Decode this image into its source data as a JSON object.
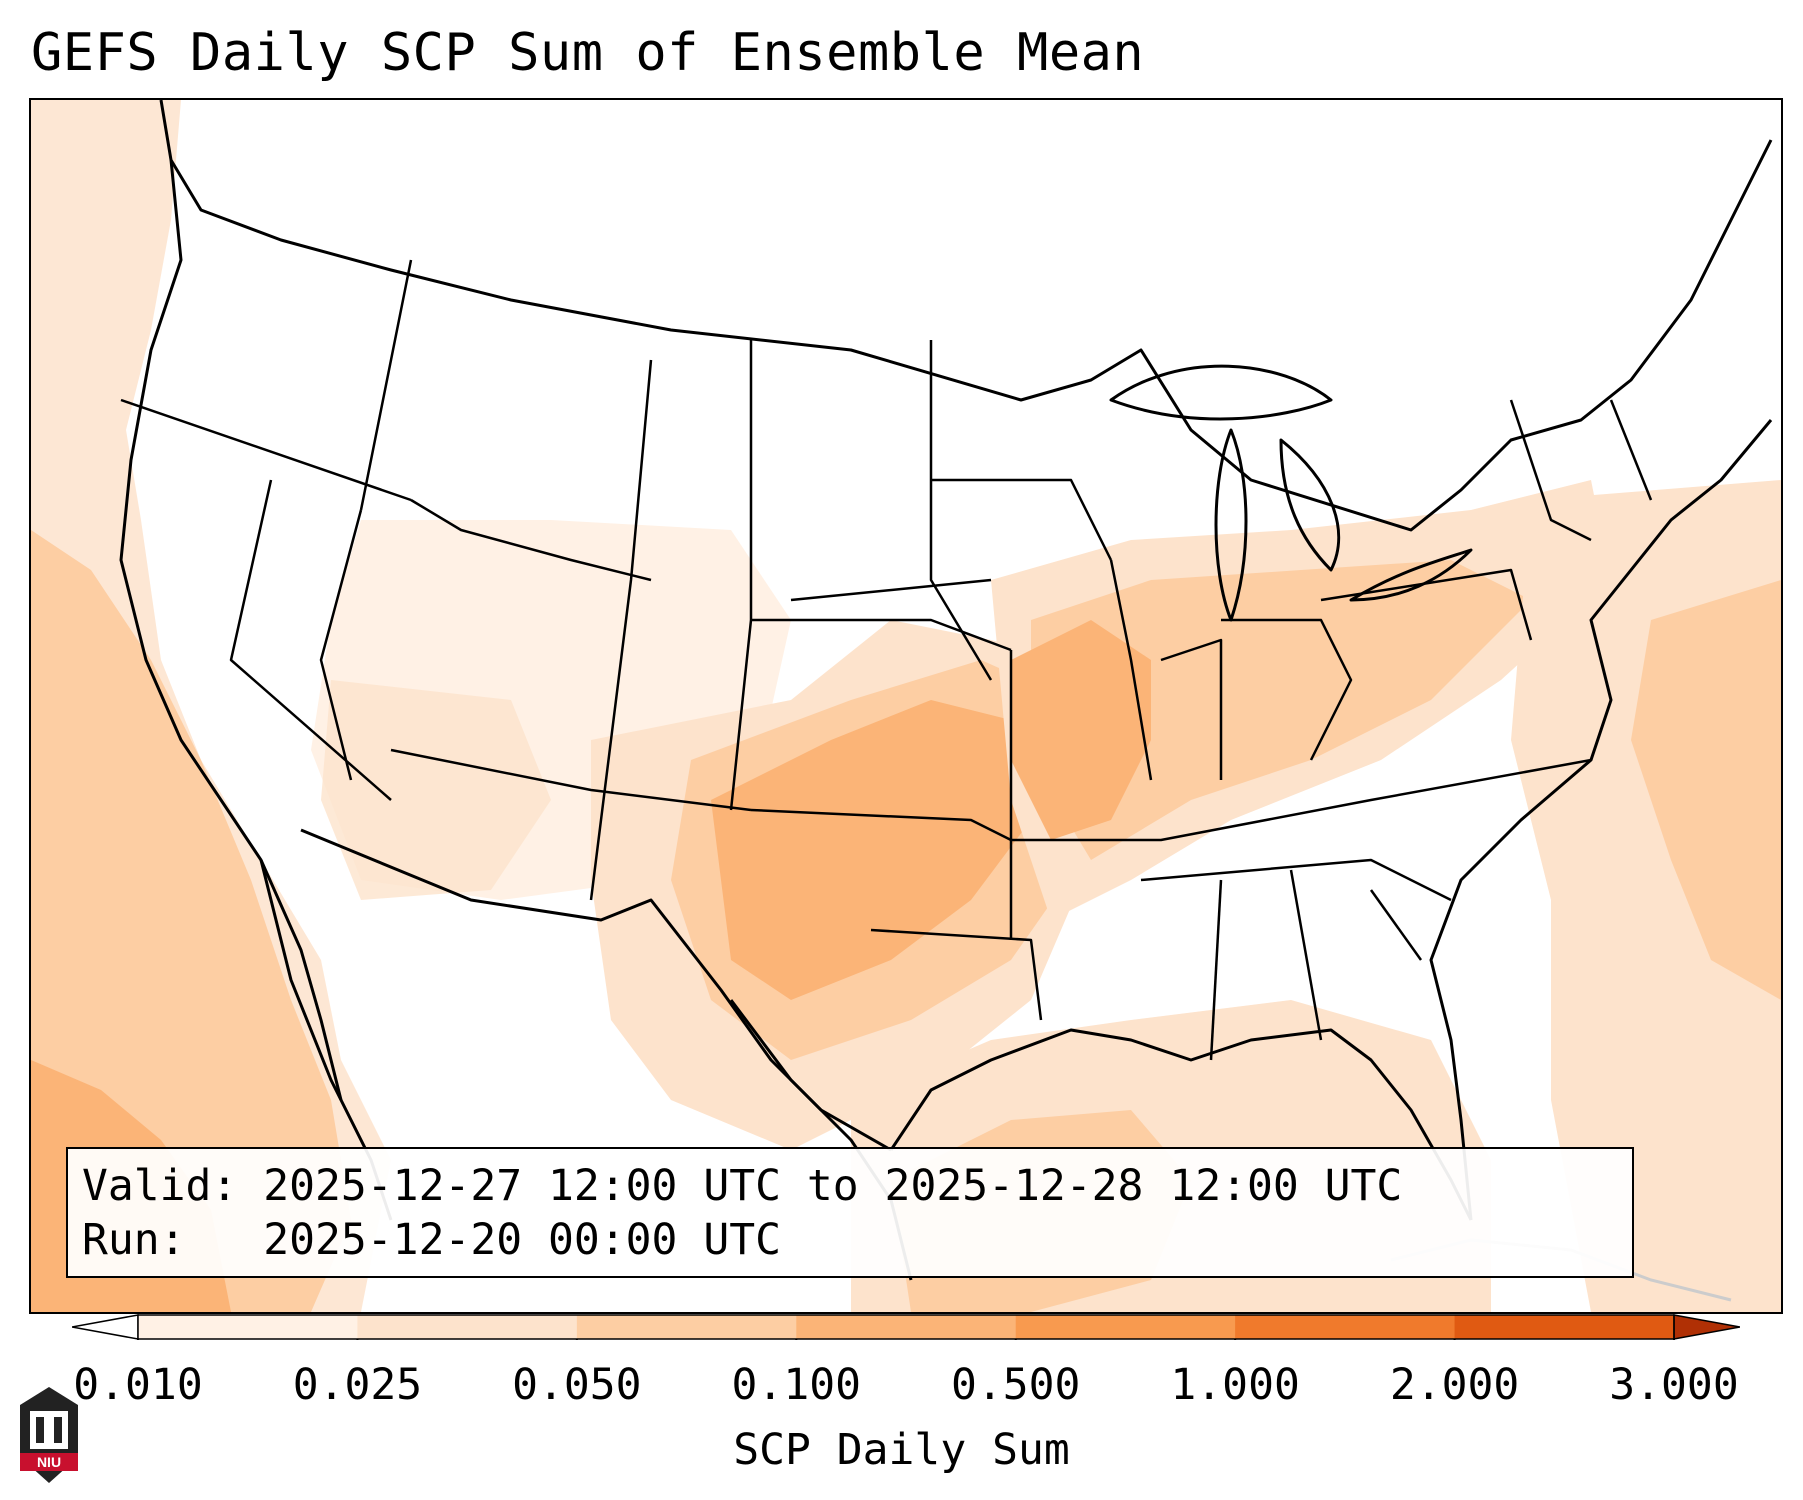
{
  "title": "GEFS Daily SCP Sum of Ensemble Mean",
  "info": {
    "valid_label": "Valid:",
    "valid_value": "2025-12-27 12:00 UTC to 2025-12-28 12:00 UTC",
    "run_label": "Run:",
    "run_value": "2025-12-20 00:00 UTC"
  },
  "colorbar": {
    "title": "SCP Daily Sum",
    "ticks": [
      "0.010",
      "0.025",
      "0.050",
      "0.100",
      "0.500",
      "1.000",
      "2.000",
      "3.000"
    ],
    "colors": [
      "#fff1e5",
      "#fde3cc",
      "#fdcea3",
      "#fbb477",
      "#f89a4f",
      "#f07a2c",
      "#e05a12",
      "#c73d06"
    ],
    "under_color": "#ffffff",
    "over_color": "#b03005"
  },
  "map": {
    "extent": "Continental United States",
    "outline_color": "#000000",
    "shading_regions": [
      {
        "region": "Pacific Ocean off California",
        "level": "0.050-0.100"
      },
      {
        "region": "Southern Plains (Oklahoma, north Texas)",
        "level": "0.100-0.500"
      },
      {
        "region": "Mid-Mississippi Valley (Missouri, Arkansas)",
        "level": "0.100-0.500"
      },
      {
        "region": "Ohio and Tennessee Valleys",
        "level": "0.050-0.100"
      },
      {
        "region": "Gulf of Mexico",
        "level": "0.050-0.100"
      },
      {
        "region": "Western Atlantic",
        "level": "0.050-0.100"
      }
    ]
  },
  "logo": {
    "text": "NIU",
    "name": "niu-logo"
  }
}
